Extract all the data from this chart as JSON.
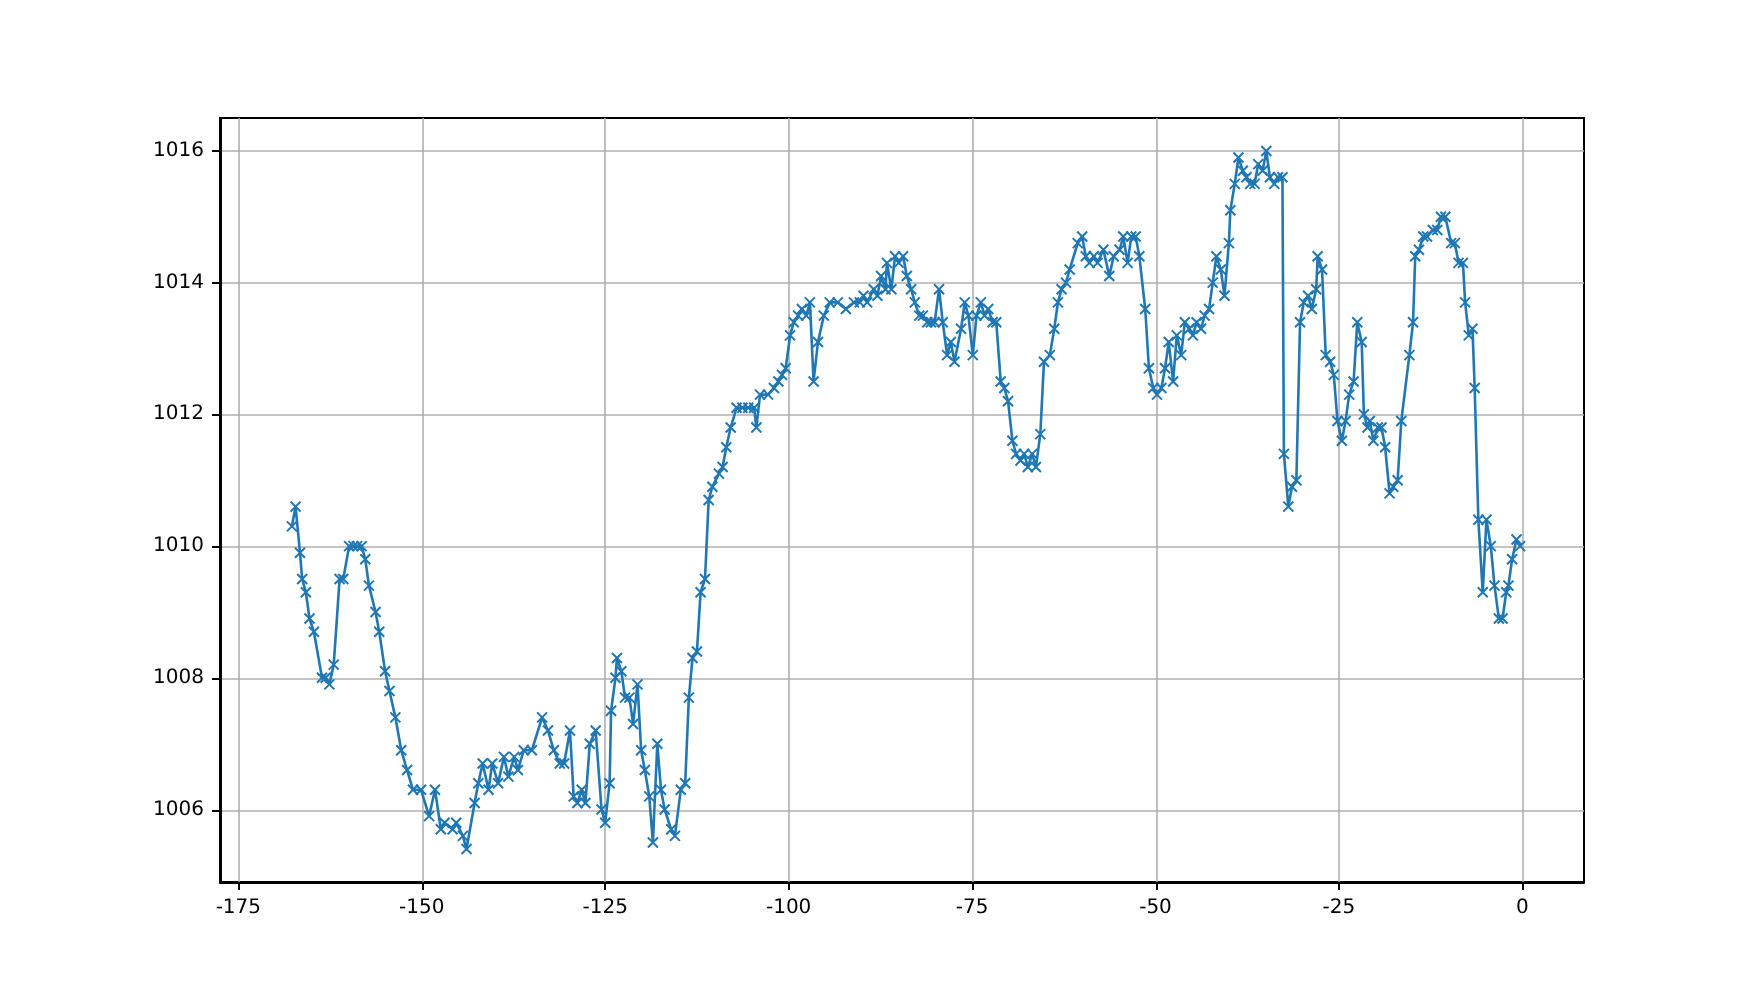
{
  "chart_data": {
    "type": "line",
    "color": "#1f77b4",
    "marker": "cross",
    "line_style": "solid",
    "grid": true,
    "xlim": [
      -177.5,
      8.4
    ],
    "ylim": [
      1004.9,
      1016.5
    ],
    "xticks": [
      -175,
      -150,
      -125,
      -100,
      -75,
      -50,
      -25,
      0
    ],
    "yticks": [
      1006,
      1008,
      1010,
      1012,
      1014,
      1016
    ],
    "x": [
      -167.7,
      -167.2,
      -166.6,
      -166.3,
      -165.8,
      -165.3,
      -164.7,
      -163.6,
      -163.1,
      -162.6,
      -162.0,
      -161.2,
      -160.7,
      -159.9,
      -159.3,
      -158.8,
      -158.2,
      -157.7,
      -157.2,
      -156.3,
      -155.8,
      -155.0,
      -154.4,
      -153.6,
      -152.8,
      -152.0,
      -151.2,
      -150.1,
      -149.0,
      -148.2,
      -147.4,
      -146.9,
      -145.8,
      -145.3,
      -144.4,
      -143.9,
      -142.8,
      -142.3,
      -141.7,
      -140.9,
      -140.4,
      -139.6,
      -138.8,
      -138.2,
      -137.4,
      -136.9,
      -136.1,
      -135.0,
      -133.6,
      -132.8,
      -132.0,
      -131.2,
      -130.6,
      -129.8,
      -129.3,
      -128.8,
      -128.2,
      -127.7,
      -127.1,
      -126.3,
      -125.5,
      -125.0,
      -124.4,
      -124.2,
      -123.6,
      -123.4,
      -122.8,
      -122.3,
      -121.7,
      -121.2,
      -120.6,
      -120.1,
      -119.6,
      -119.0,
      -118.5,
      -117.9,
      -117.4,
      -116.9,
      -116.0,
      -115.5,
      -114.7,
      -114.1,
      -113.6,
      -113.1,
      -112.5,
      -112.0,
      -111.4,
      -110.9,
      -110.4,
      -109.5,
      -109.0,
      -108.5,
      -107.9,
      -107.1,
      -106.3,
      -105.5,
      -104.7,
      -104.4,
      -103.9,
      -102.8,
      -102.0,
      -101.4,
      -100.9,
      -100.4,
      -99.8,
      -99.3,
      -98.7,
      -98.2,
      -97.6,
      -97.1,
      -96.6,
      -96.0,
      -95.2,
      -94.4,
      -93.3,
      -92.2,
      -91.1,
      -90.3,
      -89.8,
      -89.3,
      -88.4,
      -87.9,
      -87.4,
      -86.8,
      -86.6,
      -86.0,
      -85.5,
      -85.0,
      -84.4,
      -83.9,
      -83.3,
      -82.8,
      -82.2,
      -81.7,
      -81.1,
      -80.6,
      -80.1,
      -79.5,
      -79.0,
      -78.4,
      -77.9,
      -77.4,
      -76.5,
      -76.0,
      -75.5,
      -74.9,
      -74.4,
      -73.8,
      -73.3,
      -72.8,
      -72.2,
      -71.7,
      -71.1,
      -70.6,
      -70.1,
      -69.5,
      -69.0,
      -68.4,
      -67.9,
      -67.4,
      -66.8,
      -66.3,
      -65.7,
      -65.2,
      -64.4,
      -63.8,
      -63.3,
      -62.8,
      -62.2,
      -61.7,
      -60.6,
      -60.0,
      -59.5,
      -59.0,
      -58.4,
      -57.9,
      -57.1,
      -56.3,
      -55.7,
      -54.9,
      -54.4,
      -53.8,
      -53.3,
      -52.7,
      -52.2,
      -51.4,
      -50.9,
      -50.3,
      -49.8,
      -49.2,
      -48.7,
      -48.2,
      -47.6,
      -47.1,
      -46.5,
      -46.0,
      -45.4,
      -44.9,
      -44.4,
      -43.8,
      -43.3,
      -42.7,
      -42.2,
      -41.7,
      -41.1,
      -40.6,
      -40.0,
      -39.8,
      -39.2,
      -38.7,
      -38.1,
      -37.6,
      -37.1,
      -36.5,
      -36.0,
      -35.4,
      -34.9,
      -34.4,
      -33.8,
      -33.3,
      -32.7,
      -32.5,
      -31.9,
      -31.4,
      -30.8,
      -30.3,
      -29.8,
      -29.2,
      -28.7,
      -28.1,
      -27.9,
      -27.3,
      -26.8,
      -26.2,
      -25.7,
      -25.2,
      -24.6,
      -24.1,
      -23.6,
      -23.0,
      -22.5,
      -21.9,
      -21.6,
      -21.1,
      -20.8,
      -20.3,
      -19.7,
      -19.2,
      -18.7,
      -18.1,
      -17.6,
      -17.0,
      -16.5,
      -15.4,
      -14.9,
      -14.6,
      -14.1,
      -13.5,
      -13.0,
      -12.2,
      -11.6,
      -11.1,
      -10.5,
      -9.7,
      -9.2,
      -8.7,
      -8.1,
      -7.8,
      -7.3,
      -6.8,
      -6.5,
      -6.0,
      -5.4,
      -4.9,
      -4.3,
      -3.8,
      -3.2,
      -2.7,
      -2.2,
      -1.9,
      -1.4,
      -0.8,
      -0.3
    ],
    "values": [
      1010.3,
      1010.6,
      1009.9,
      1009.5,
      1009.3,
      1008.9,
      1008.7,
      1008.0,
      1008.0,
      1007.9,
      1008.2,
      1009.5,
      1009.5,
      1010.0,
      1010.0,
      1010.0,
      1010.0,
      1009.8,
      1009.4,
      1009.0,
      1008.7,
      1008.1,
      1007.8,
      1007.4,
      1006.9,
      1006.6,
      1006.3,
      1006.3,
      1005.9,
      1006.3,
      1005.7,
      1005.8,
      1005.7,
      1005.8,
      1005.6,
      1005.4,
      1006.1,
      1006.4,
      1006.7,
      1006.3,
      1006.7,
      1006.4,
      1006.8,
      1006.5,
      1006.8,
      1006.6,
      1006.9,
      1006.9,
      1007.4,
      1007.2,
      1006.9,
      1006.7,
      1006.7,
      1007.2,
      1006.2,
      1006.1,
      1006.3,
      1006.1,
      1007.0,
      1007.2,
      1006.0,
      1005.8,
      1006.4,
      1007.5,
      1008.0,
      1008.3,
      1008.1,
      1007.7,
      1007.7,
      1007.3,
      1007.9,
      1006.9,
      1006.6,
      1006.2,
      1005.5,
      1007.0,
      1006.3,
      1006.0,
      1005.7,
      1005.6,
      1006.3,
      1006.4,
      1007.7,
      1008.3,
      1008.4,
      1009.3,
      1009.5,
      1010.7,
      1010.9,
      1011.1,
      1011.2,
      1011.5,
      1011.8,
      1012.1,
      1012.1,
      1012.1,
      1012.1,
      1011.8,
      1012.3,
      1012.3,
      1012.4,
      1012.5,
      1012.6,
      1012.7,
      1013.2,
      1013.4,
      1013.5,
      1013.6,
      1013.5,
      1013.7,
      1012.5,
      1013.1,
      1013.5,
      1013.7,
      1013.7,
      1013.6,
      1013.7,
      1013.7,
      1013.8,
      1013.7,
      1013.9,
      1013.8,
      1014.1,
      1013.9,
      1014.3,
      1013.9,
      1014.4,
      1014.3,
      1014.4,
      1014.1,
      1013.9,
      1013.7,
      1013.5,
      1013.5,
      1013.4,
      1013.4,
      1013.4,
      1013.9,
      1013.4,
      1012.9,
      1013.1,
      1012.8,
      1013.3,
      1013.7,
      1013.5,
      1012.9,
      1013.5,
      1013.7,
      1013.5,
      1013.6,
      1013.4,
      1013.4,
      1012.5,
      1012.4,
      1012.2,
      1011.6,
      1011.4,
      1011.3,
      1011.4,
      1011.2,
      1011.4,
      1011.2,
      1011.7,
      1012.8,
      1012.9,
      1013.3,
      1013.7,
      1013.9,
      1014.0,
      1014.2,
      1014.6,
      1014.7,
      1014.4,
      1014.3,
      1014.4,
      1014.3,
      1014.5,
      1014.1,
      1014.4,
      1014.5,
      1014.7,
      1014.3,
      1014.7,
      1014.7,
      1014.4,
      1013.6,
      1012.7,
      1012.4,
      1012.3,
      1012.4,
      1012.7,
      1013.1,
      1012.5,
      1013.2,
      1012.9,
      1013.4,
      1013.3,
      1013.2,
      1013.4,
      1013.3,
      1013.5,
      1013.6,
      1014.0,
      1014.4,
      1014.2,
      1013.8,
      1014.6,
      1015.1,
      1015.5,
      1015.9,
      1015.7,
      1015.6,
      1015.5,
      1015.5,
      1015.8,
      1015.7,
      1016.0,
      1015.6,
      1015.5,
      1015.6,
      1015.6,
      1011.4,
      1010.6,
      1010.9,
      1011.0,
      1013.4,
      1013.7,
      1013.8,
      1013.6,
      1013.9,
      1014.4,
      1014.2,
      1012.9,
      1012.8,
      1012.6,
      1011.9,
      1011.6,
      1011.9,
      1012.3,
      1012.5,
      1013.4,
      1013.1,
      1012.0,
      1011.8,
      1011.9,
      1011.6,
      1011.8,
      1011.8,
      1011.5,
      1010.8,
      1010.9,
      1011.0,
      1011.9,
      1012.9,
      1013.4,
      1014.4,
      1014.5,
      1014.7,
      1014.7,
      1014.8,
      1014.8,
      1015.0,
      1015.0,
      1014.6,
      1014.6,
      1014.3,
      1014.3,
      1013.7,
      1013.2,
      1013.3,
      1012.4,
      1010.4,
      1009.3,
      1010.4,
      1010.0,
      1009.4,
      1008.9,
      1008.9,
      1009.3,
      1009.4,
      1009.8,
      1010.1,
      1010.0
    ]
  }
}
